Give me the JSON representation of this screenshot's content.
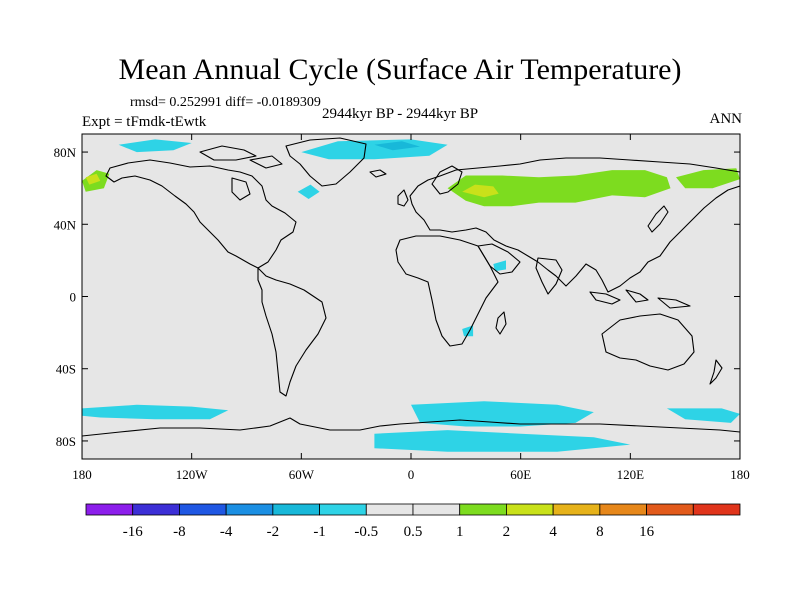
{
  "title": "Mean Annual Cycle (Surface Air Temperature)",
  "stats_line": "rmsd= 0.252991 diff= -0.0189309",
  "experiment": "Expt = tFmdk-tEwtk",
  "period": "2944kyr BP - 2944kyr BP",
  "season": "ANN",
  "colors": {
    "background": "#e6e6e6",
    "land_outline": "#000000",
    "pos_1": "#7ddc1f",
    "pos_2": "#c9e11a",
    "neg_05": "#2ed3e6",
    "neg_1": "#18b8d9"
  },
  "map": {
    "lon_min": -180,
    "lon_max": 180,
    "lat_min": -90,
    "lat_max": 90,
    "lon_ticks": [
      {
        "value": -180,
        "label": "180"
      },
      {
        "value": -120,
        "label": "120W"
      },
      {
        "value": -60,
        "label": "60W"
      },
      {
        "value": 0,
        "label": "0"
      },
      {
        "value": 60,
        "label": "60E"
      },
      {
        "value": 120,
        "label": "120E"
      },
      {
        "value": 180,
        "label": "180"
      }
    ],
    "lat_ticks": [
      {
        "value": 80,
        "label": "80N"
      },
      {
        "value": 40,
        "label": "40N"
      },
      {
        "value": 0,
        "label": "0"
      },
      {
        "value": -40,
        "label": "40S"
      },
      {
        "value": -80,
        "label": "80S"
      }
    ],
    "anomaly_regions": [
      {
        "name": "siberia-warm",
        "color": "#7ddc1f",
        "points": [
          [
            20,
            60
          ],
          [
            30,
            67
          ],
          [
            50,
            67
          ],
          [
            70,
            66
          ],
          [
            90,
            67
          ],
          [
            110,
            70
          ],
          [
            128,
            70
          ],
          [
            140,
            66
          ],
          [
            142,
            60
          ],
          [
            128,
            55
          ],
          [
            110,
            56
          ],
          [
            90,
            52
          ],
          [
            70,
            52
          ],
          [
            55,
            50
          ],
          [
            40,
            50
          ],
          [
            30,
            53
          ]
        ]
      },
      {
        "name": "scandinavia-warm",
        "color": "#c9e11a",
        "points": [
          [
            28,
            58
          ],
          [
            35,
            62
          ],
          [
            45,
            61
          ],
          [
            48,
            57
          ],
          [
            40,
            55
          ]
        ]
      },
      {
        "name": "east-siberia-warm",
        "color": "#7ddc1f",
        "points": [
          [
            145,
            66
          ],
          [
            160,
            70
          ],
          [
            178,
            71
          ],
          [
            180,
            65
          ],
          [
            165,
            60
          ],
          [
            150,
            60
          ]
        ]
      },
      {
        "name": "alaska-warm",
        "color": "#7ddc1f",
        "points": [
          [
            -180,
            64
          ],
          [
            -172,
            70
          ],
          [
            -165,
            68
          ],
          [
            -168,
            60
          ],
          [
            -178,
            58
          ]
        ]
      },
      {
        "name": "alaska-warm-core",
        "color": "#c9e11a",
        "points": [
          [
            -178,
            66
          ],
          [
            -172,
            68
          ],
          [
            -170,
            64
          ],
          [
            -176,
            62
          ]
        ]
      },
      {
        "name": "arctic-cool-1",
        "color": "#2ed3e6",
        "points": [
          [
            -60,
            80
          ],
          [
            -40,
            86
          ],
          [
            0,
            87
          ],
          [
            20,
            84
          ],
          [
            10,
            78
          ],
          [
            -20,
            76
          ],
          [
            -45,
            76
          ]
        ]
      },
      {
        "name": "arctic-cool-core",
        "color": "#18b8d9",
        "points": [
          [
            -20,
            84
          ],
          [
            -5,
            86
          ],
          [
            5,
            83
          ],
          [
            -10,
            81
          ]
        ]
      },
      {
        "name": "beaufort-cool",
        "color": "#2ed3e6",
        "points": [
          [
            -160,
            84
          ],
          [
            -140,
            87
          ],
          [
            -120,
            85
          ],
          [
            -130,
            81
          ],
          [
            -150,
            80
          ]
        ]
      },
      {
        "name": "antarctic-cool-west",
        "color": "#2ed3e6",
        "points": [
          [
            -180,
            -62
          ],
          [
            -150,
            -60
          ],
          [
            -120,
            -61
          ],
          [
            -100,
            -63
          ],
          [
            -110,
            -68
          ],
          [
            -140,
            -68
          ],
          [
            -170,
            -67
          ],
          [
            -180,
            -66
          ]
        ]
      },
      {
        "name": "antarctic-cool-east",
        "color": "#2ed3e6",
        "points": [
          [
            0,
            -60
          ],
          [
            40,
            -58
          ],
          [
            80,
            -60
          ],
          [
            100,
            -64
          ],
          [
            90,
            -70
          ],
          [
            60,
            -72
          ],
          [
            30,
            -72
          ],
          [
            5,
            -70
          ]
        ]
      },
      {
        "name": "antarctic-cool-south",
        "color": "#2ed3e6",
        "points": [
          [
            -20,
            -76
          ],
          [
            20,
            -74
          ],
          [
            60,
            -76
          ],
          [
            100,
            -78
          ],
          [
            120,
            -82
          ],
          [
            80,
            -86
          ],
          [
            20,
            -86
          ],
          [
            -20,
            -84
          ]
        ]
      },
      {
        "name": "antarctic-cool-far-east",
        "color": "#2ed3e6",
        "points": [
          [
            140,
            -62
          ],
          [
            170,
            -62
          ],
          [
            180,
            -65
          ],
          [
            175,
            -70
          ],
          [
            150,
            -68
          ]
        ]
      },
      {
        "name": "africa-cool-spot",
        "color": "#2ed3e6",
        "points": [
          [
            28,
            -18
          ],
          [
            34,
            -16
          ],
          [
            34,
            -22
          ],
          [
            29,
            -22
          ]
        ]
      },
      {
        "name": "arabia-cool-spot",
        "color": "#2ed3e6",
        "points": [
          [
            45,
            18
          ],
          [
            52,
            20
          ],
          [
            52,
            15
          ],
          [
            46,
            14
          ]
        ]
      },
      {
        "name": "labrador-cool",
        "color": "#2ed3e6",
        "points": [
          [
            -62,
            58
          ],
          [
            -55,
            62
          ],
          [
            -50,
            58
          ],
          [
            -56,
            54
          ]
        ]
      }
    ]
  },
  "colorbar": {
    "colors": [
      "#8c1eeb",
      "#3c2fd6",
      "#1f57e3",
      "#1b8fe3",
      "#18b8d9",
      "#2ed3e6",
      "#e6e6e6",
      "#e6e6e6",
      "#7ddc1f",
      "#c9e11a",
      "#e6b21a",
      "#e6871a",
      "#e25a1b",
      "#e0341b"
    ],
    "labels": [
      "-16",
      "-8",
      "-4",
      "-2",
      "-1",
      "-0.5",
      "0.5",
      "1",
      "2",
      "4",
      "8",
      "16"
    ]
  }
}
